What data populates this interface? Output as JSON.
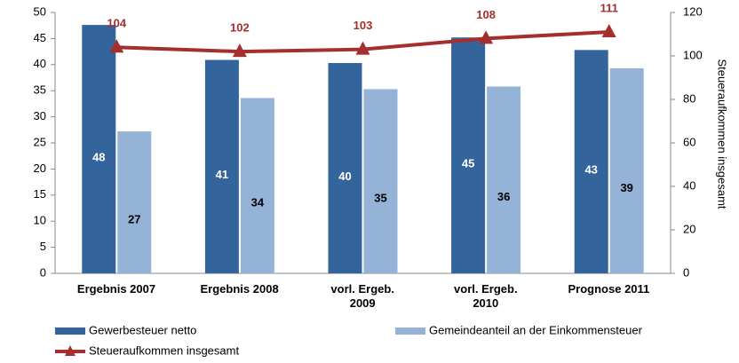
{
  "chart_data": {
    "type": "bar",
    "categories": [
      "Ergebnis 2007",
      "Ergebnis 2008",
      "vorl. Ergeb.\n2009",
      "vorl. Ergeb.\n2010",
      "Prognose 2011"
    ],
    "series": [
      {
        "name": "Gewerbesteuer netto",
        "color": "#34649c",
        "values": [
          47.6,
          40.9,
          40.3,
          45.2,
          42.8
        ],
        "value_labels": [
          "48",
          "41",
          "40",
          "45",
          "43"
        ]
      },
      {
        "name": "Gemeindeanteil an der Einkommensteuer",
        "color": "#95b3d7",
        "values": [
          27.2,
          33.6,
          35.3,
          35.8,
          39.3
        ],
        "value_labels": [
          "27",
          "34",
          "35",
          "36",
          "39"
        ]
      },
      {
        "name": "Steueraufkommen insgesamt",
        "color": "#a52f2c",
        "type": "line",
        "axis": "y2",
        "values": [
          104,
          102,
          103,
          108,
          111
        ]
      }
    ],
    "ylim": [
      0,
      50
    ],
    "yticks": [
      0,
      5,
      10,
      15,
      20,
      25,
      30,
      35,
      40,
      45,
      50
    ],
    "y2lim": [
      0,
      120
    ],
    "y2ticks": [
      0,
      20,
      40,
      60,
      80,
      100,
      120
    ],
    "y2label": "Steueraufkommen  insgesamt"
  }
}
